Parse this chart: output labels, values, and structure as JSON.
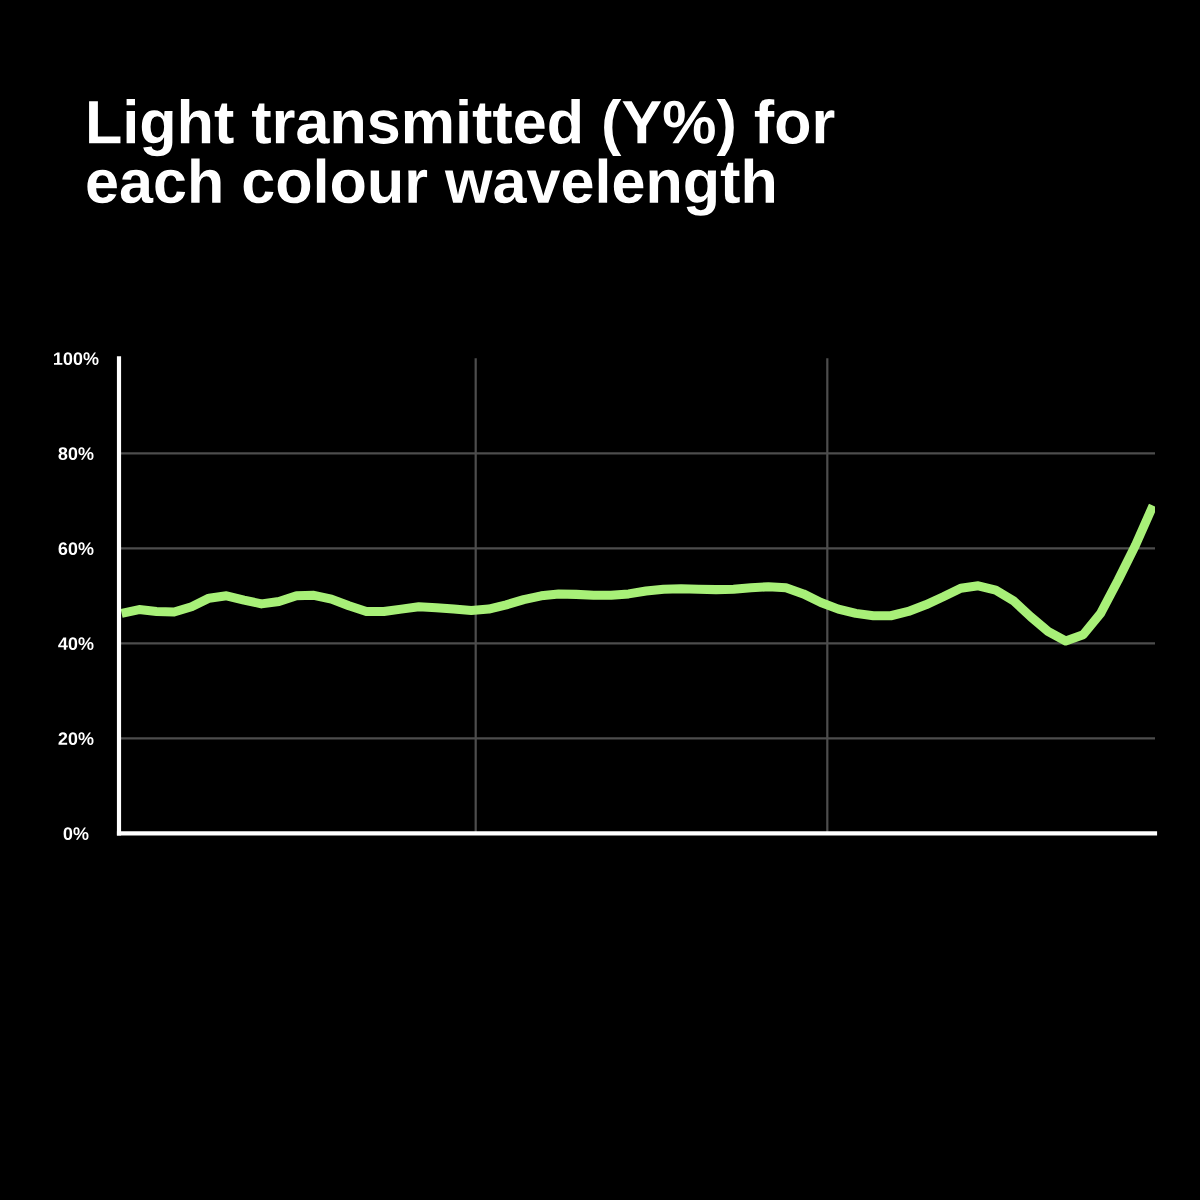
{
  "chart_data": {
    "type": "line",
    "title": "Light transmitted (Y%) for\neach colour wavelength",
    "categories": [
      null,
      null,
      null,
      null,
      null,
      null,
      null,
      null,
      null,
      null,
      null,
      null,
      null,
      null,
      null,
      null,
      null,
      null,
      null,
      null,
      null,
      null,
      null,
      null,
      null,
      null,
      null,
      null,
      null,
      null,
      null,
      null,
      null,
      null,
      null,
      null,
      null,
      null,
      null,
      null,
      null,
      null,
      null,
      null,
      null,
      null,
      null,
      null,
      null,
      null,
      null,
      null,
      null,
      null,
      null,
      null,
      null,
      null,
      null,
      null
    ],
    "values": [
      46.3,
      47.1,
      46.7,
      46.6,
      47.7,
      49.5,
      50.0,
      49.1,
      48.3,
      48.8,
      50.0,
      50.1,
      49.3,
      47.9,
      46.7,
      46.7,
      47.2,
      47.7,
      47.5,
      47.2,
      46.9,
      47.2,
      48.1,
      49.2,
      50.0,
      50.4,
      50.3,
      50.1,
      50.1,
      50.4,
      51.0,
      51.4,
      51.5,
      51.4,
      51.3,
      51.4,
      51.7,
      51.9,
      51.7,
      50.4,
      48.6,
      47.2,
      46.3,
      45.8,
      45.8,
      46.7,
      48.1,
      49.8,
      51.6,
      52.1,
      51.2,
      49.0,
      45.6,
      42.5,
      40.5,
      41.8,
      46.3,
      53.3,
      60.7,
      69.0
    ],
    "color": "#a8f078",
    "ylim": [
      0,
      100
    ],
    "yticks": [
      {
        "value": 0,
        "label": "0%"
      },
      {
        "value": 20,
        "label": "20%"
      },
      {
        "value": 40,
        "label": "40%"
      },
      {
        "value": 60,
        "label": "60%"
      },
      {
        "value": 80,
        "label": "80%"
      },
      {
        "value": 100,
        "label": "100%"
      }
    ],
    "grid": "y",
    "tick_labels": "y"
  }
}
